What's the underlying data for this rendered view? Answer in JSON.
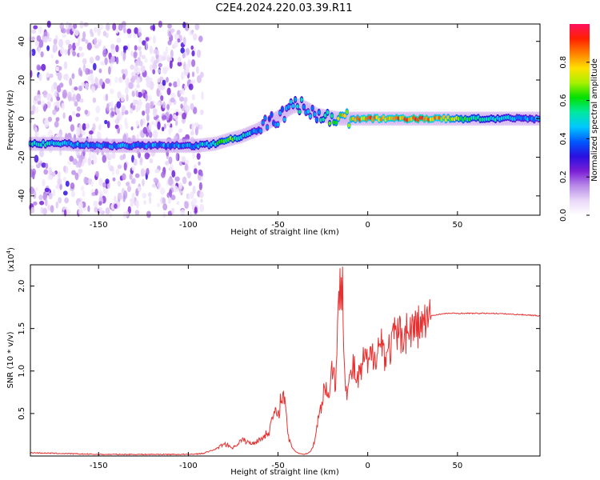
{
  "figure_title": "C2E4.2024.220.03.39.R11",
  "chart_data": [
    {
      "type": "heatmap",
      "title": "C2E4.2024.220.03.39.R11",
      "xlabel": "Height of straight line (km)",
      "ylabel": "Frequency (Hz)",
      "xlim": [
        -188,
        96
      ],
      "ylim": [
        -50,
        49
      ],
      "x_ticks": [
        -150,
        -100,
        -50,
        0,
        50
      ],
      "y_ticks": [
        -40,
        -20,
        0,
        20,
        40
      ],
      "grid": false,
      "colorbar": {
        "label": "Normalized spectral amplitude",
        "range": [
          0,
          1
        ],
        "ticks": [
          0.0,
          0.2,
          0.4,
          0.6,
          0.8
        ],
        "colormap": [
          "#ffffff",
          "#e9d8f8",
          "#b98ae8",
          "#7a1fd6",
          "#2a0fe0",
          "#0059ff",
          "#00c8ff",
          "#00e8a0",
          "#00e000",
          "#a8f000",
          "#ffe000",
          "#ff8000",
          "#ff2000",
          "#ff1060"
        ]
      },
      "ridge": {
        "description_points_x": [
          -188,
          -170,
          -150,
          -130,
          -110,
          -95,
          -85,
          -78,
          -70,
          -62,
          -55,
          -48,
          -42,
          -38,
          -33,
          -28,
          -22,
          -15,
          -8,
          0,
          10,
          20,
          30,
          40,
          60,
          80,
          96
        ],
        "frequency": [
          -13,
          -13,
          -14,
          -14,
          -14,
          -14,
          -13,
          -11,
          -9,
          -6,
          -2,
          2,
          6,
          7,
          5,
          2,
          1,
          0,
          0,
          0,
          0,
          0,
          0,
          0,
          0,
          0,
          0
        ],
        "peak_amplitude": [
          0.55,
          0.5,
          0.45,
          0.45,
          0.45,
          0.5,
          0.55,
          0.7,
          0.55,
          0.45,
          0.4,
          0.45,
          0.5,
          0.55,
          0.45,
          0.5,
          0.6,
          0.8,
          0.8,
          0.9,
          0.85,
          0.9,
          0.95,
          0.85,
          0.6,
          0.5,
          0.45
        ]
      },
      "noise_region_x": [
        -188,
        -92
      ]
    },
    {
      "type": "line",
      "xlabel": "Height of straight line (km)",
      "ylabel": "SNR (10 * v/v)",
      "y_exponent_label": "(x10",
      "y_exponent": "4",
      "y_exponent_close": ")",
      "xlim": [
        -188,
        96
      ],
      "ylim": [
        0,
        2.25
      ],
      "x_ticks": [
        -150,
        -100,
        -50,
        0,
        50
      ],
      "y_ticks": [
        0.5,
        1.0,
        1.5,
        2.0
      ],
      "y_tick_labels": [
        "0.5",
        "1.0",
        "1.5",
        "2.0"
      ],
      "grid": false,
      "line_color": "#e83030",
      "series": [
        {
          "x": [
            -188,
            -170,
            -150,
            -130,
            -110,
            -100,
            -92,
            -85,
            -80,
            -75,
            -70,
            -65,
            -60,
            -55,
            -52,
            -50,
            -48,
            -46,
            -44,
            -42,
            -40,
            -38,
            -35,
            -32,
            -30,
            -28,
            -26,
            -24,
            -22,
            -20,
            -18,
            -16,
            -14,
            -13,
            -12,
            -10,
            -8,
            -6,
            -4,
            -2,
            0,
            2,
            5,
            8,
            10,
            15,
            20,
            25,
            30,
            35,
            40,
            45,
            50,
            60,
            70,
            80,
            90,
            96
          ],
          "values": [
            0.04,
            0.03,
            0.02,
            0.02,
            0.02,
            0.02,
            0.03,
            0.08,
            0.15,
            0.1,
            0.2,
            0.15,
            0.2,
            0.3,
            0.55,
            0.45,
            0.8,
            0.6,
            0.2,
            0.1,
            0.05,
            0.03,
            0.02,
            0.05,
            0.15,
            0.4,
            0.6,
            0.9,
            0.7,
            1.1,
            0.9,
            1.9,
            2.2,
            1.2,
            0.8,
            0.9,
            1.1,
            0.9,
            1.0,
            1.2,
            1.1,
            1.2,
            1.3,
            1.4,
            1.2,
            1.45,
            1.5,
            1.55,
            1.6,
            1.65,
            1.67,
            1.68,
            1.68,
            1.68,
            1.68,
            1.67,
            1.66,
            1.65
          ]
        }
      ]
    }
  ]
}
